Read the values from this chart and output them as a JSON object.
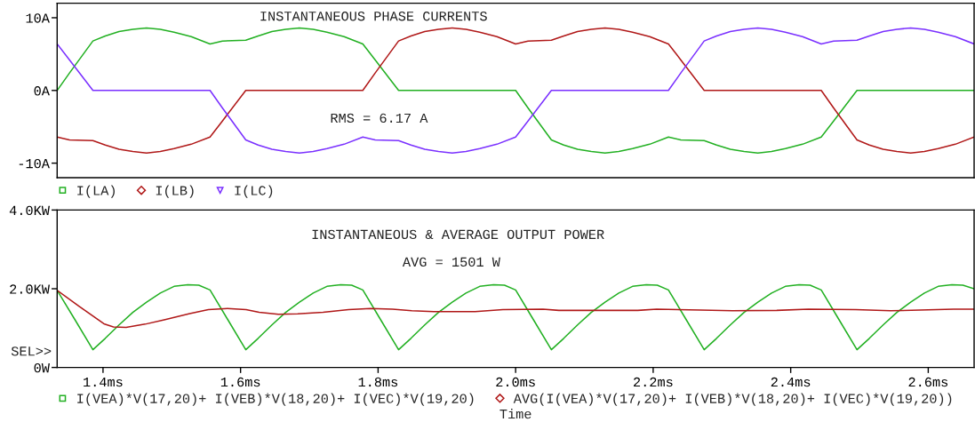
{
  "chart_data": [
    {
      "type": "line",
      "title": "INSTANTANEOUS PHASE CURRENTS",
      "annotations": [
        "RMS = 6.17 A"
      ],
      "x": [
        1.3333,
        1.3513,
        1.3853,
        1.4033,
        1.4233,
        1.4433,
        1.4633,
        1.4833,
        1.5033,
        1.5283,
        1.5556,
        1.5736,
        1.6076,
        1.6256,
        1.6456,
        1.6656,
        1.6856,
        1.7056,
        1.7256,
        1.7506,
        1.7778,
        1.7958,
        1.8298,
        1.8478,
        1.8678,
        1.8878,
        1.9078,
        1.9278,
        1.9478,
        1.9728,
        2.0,
        2.018,
        2.052,
        2.07,
        2.09,
        2.11,
        2.13,
        2.15,
        2.17,
        2.195,
        2.2222,
        2.2402,
        2.2742,
        2.2922,
        2.3122,
        2.3322,
        2.3522,
        2.3722,
        2.3922,
        2.4172,
        2.4444,
        2.4624,
        2.4964,
        2.5144,
        2.5344,
        2.5544,
        2.5744,
        2.5944,
        2.6144,
        2.6394,
        2.6667
      ],
      "series": [
        {
          "name": "I(LA)",
          "color": "#22b022",
          "values": [
            0,
            2.4,
            6.8,
            7.5,
            8.1,
            8.4,
            8.6,
            8.4,
            8.0,
            7.4,
            6.4,
            6.8,
            6.9,
            7.5,
            8.1,
            8.4,
            8.6,
            8.4,
            8.0,
            7.4,
            6.4,
            4.2,
            0,
            0,
            0,
            0,
            0,
            0,
            0,
            0,
            0,
            -2.4,
            -6.8,
            -7.5,
            -8.1,
            -8.4,
            -8.6,
            -8.4,
            -8.0,
            -7.4,
            -6.4,
            -6.8,
            -6.9,
            -7.5,
            -8.1,
            -8.4,
            -8.6,
            -8.4,
            -8.0,
            -7.4,
            -6.4,
            -4.2,
            0,
            0,
            0,
            0,
            0,
            0,
            0,
            0,
            0
          ]
        },
        {
          "name": "I(LB)",
          "color": "#b01818",
          "values": [
            -6.4,
            -6.8,
            -6.9,
            -7.5,
            -8.1,
            -8.4,
            -8.6,
            -8.4,
            -8.0,
            -7.4,
            -6.4,
            -4.2,
            0,
            0,
            0,
            0,
            0,
            0,
            0,
            0,
            0,
            2.4,
            6.8,
            7.5,
            8.1,
            8.4,
            8.6,
            8.4,
            8.0,
            7.4,
            6.4,
            6.8,
            6.9,
            7.5,
            8.1,
            8.4,
            8.6,
            8.4,
            8.0,
            7.4,
            6.4,
            4.2,
            0,
            0,
            0,
            0,
            0,
            0,
            0,
            0,
            0,
            -2.4,
            -6.8,
            -7.5,
            -8.1,
            -8.4,
            -8.6,
            -8.4,
            -8.0,
            -7.4,
            -6.4
          ]
        },
        {
          "name": "I(LC)",
          "color": "#7a30ff",
          "values": [
            6.4,
            4.2,
            0,
            0,
            0,
            0,
            0,
            0,
            0,
            0,
            0,
            -2.4,
            -6.8,
            -7.5,
            -8.1,
            -8.4,
            -8.6,
            -8.4,
            -8.0,
            -7.4,
            -6.4,
            -6.8,
            -6.9,
            -7.5,
            -8.1,
            -8.4,
            -8.6,
            -8.4,
            -8.0,
            -7.4,
            -6.4,
            -4.2,
            0,
            0,
            0,
            0,
            0,
            0,
            0,
            0,
            0,
            2.4,
            6.8,
            7.5,
            8.1,
            8.4,
            8.6,
            8.4,
            8.0,
            7.4,
            6.4,
            6.8,
            6.9,
            7.5,
            8.1,
            8.4,
            8.6,
            8.4,
            8.0,
            7.4,
            6.4
          ]
        }
      ],
      "xlim": [
        1.3333,
        2.6667
      ],
      "ylim": [
        -12,
        12
      ],
      "yticks": [
        {
          "value": 10,
          "label": "10A"
        },
        {
          "value": 0,
          "label": "0A"
        },
        {
          "value": -10,
          "label": "-10A"
        }
      ],
      "tick_labels": "y",
      "legend": "bottom"
    },
    {
      "type": "line",
      "title": "INSTANTANEOUS & AVERAGE OUTPUT POWER",
      "annotations": [
        "AVG = 1501 W",
        "SEL>>"
      ],
      "xlabel": "Time",
      "series": [
        {
          "name": "I(VEA)*V(17,20)+ I(VEB)*V(18,20)+ I(VEC)*V(19,20)",
          "color": "#22b022",
          "x": [
            1.3333,
            1.3593,
            1.3853,
            1.4033,
            1.4233,
            1.4433,
            1.4633,
            1.4833,
            1.5033,
            1.5233,
            1.5393,
            1.5556,
            1.5816,
            1.6076,
            1.6256,
            1.6456,
            1.6656,
            1.6856,
            1.7056,
            1.7256,
            1.7456,
            1.7616,
            1.7778,
            1.8038,
            1.8298,
            1.8478,
            1.8678,
            1.8878,
            1.9078,
            1.9278,
            1.9478,
            1.9678,
            1.9838,
            2.0,
            2.026,
            2.052,
            2.07,
            2.09,
            2.11,
            2.13,
            2.15,
            2.17,
            2.19,
            2.206,
            2.2222,
            2.2482,
            2.2742,
            2.2922,
            2.3122,
            2.3322,
            2.3522,
            2.3722,
            2.3922,
            2.4122,
            2.4282,
            2.4444,
            2.4704,
            2.4964,
            2.5144,
            2.5344,
            2.5544,
            2.5744,
            2.5944,
            2.6144,
            2.6344,
            2.6504,
            2.6667
          ],
          "values": [
            1.96,
            1.21,
            0.45,
            0.74,
            1.08,
            1.4,
            1.66,
            1.89,
            2.06,
            2.1,
            2.09,
            1.97,
            1.21,
            0.45,
            0.74,
            1.08,
            1.4,
            1.66,
            1.89,
            2.06,
            2.1,
            2.09,
            1.97,
            1.21,
            0.45,
            0.74,
            1.08,
            1.4,
            1.66,
            1.89,
            2.06,
            2.1,
            2.09,
            1.97,
            1.21,
            0.45,
            0.74,
            1.08,
            1.4,
            1.66,
            1.89,
            2.06,
            2.1,
            2.09,
            1.97,
            1.21,
            0.45,
            0.74,
            1.08,
            1.4,
            1.66,
            1.89,
            2.06,
            2.1,
            2.09,
            1.97,
            1.21,
            0.45,
            0.74,
            1.08,
            1.4,
            1.66,
            1.89,
            2.06,
            2.1,
            2.09,
            2.0
          ]
        },
        {
          "name": "AVG(I(VEA)*V(17,20)+ I(VEB)*V(18,20)+ I(VEC)*V(19,20))",
          "color": "#b01818",
          "x": [
            1.3333,
            1.3654,
            1.4013,
            1.4151,
            1.4336,
            1.4613,
            1.489,
            1.526,
            1.5531,
            1.581,
            1.608,
            1.627,
            1.655,
            1.683,
            1.72,
            1.757,
            1.789,
            1.821,
            1.849,
            1.881,
            1.941,
            1.9815,
            2.0397,
            2.0628,
            2.1776,
            2.2051,
            2.2694,
            2.3153,
            2.3796,
            2.4256,
            2.4944,
            2.5449,
            2.6368,
            2.6667
          ],
          "values": [
            1.96,
            1.55,
            1.11,
            1.03,
            1.02,
            1.1,
            1.21,
            1.37,
            1.47,
            1.5,
            1.47,
            1.4,
            1.35,
            1.36,
            1.4,
            1.47,
            1.5,
            1.48,
            1.44,
            1.42,
            1.42,
            1.47,
            1.48,
            1.45,
            1.45,
            1.48,
            1.46,
            1.44,
            1.45,
            1.48,
            1.47,
            1.44,
            1.48,
            1.48
          ]
        }
      ],
      "xlim": [
        1.3333,
        2.6667
      ],
      "ylim": [
        0,
        4.0
      ],
      "xticks": [
        {
          "value": 1.4,
          "label": "1.4ms"
        },
        {
          "value": 1.6,
          "label": "1.6ms"
        },
        {
          "value": 1.8,
          "label": "1.8ms"
        },
        {
          "value": 2.0,
          "label": "2.0ms"
        },
        {
          "value": 2.2,
          "label": "2.2ms"
        },
        {
          "value": 2.4,
          "label": "2.4ms"
        },
        {
          "value": 2.6,
          "label": "2.6ms"
        }
      ],
      "yticks": [
        {
          "value": 4.0,
          "label": "4.0KW"
        },
        {
          "value": 2.0,
          "label": "2.0KW"
        },
        {
          "value": 0,
          "label": "0W"
        }
      ],
      "legend": "bottom"
    }
  ]
}
